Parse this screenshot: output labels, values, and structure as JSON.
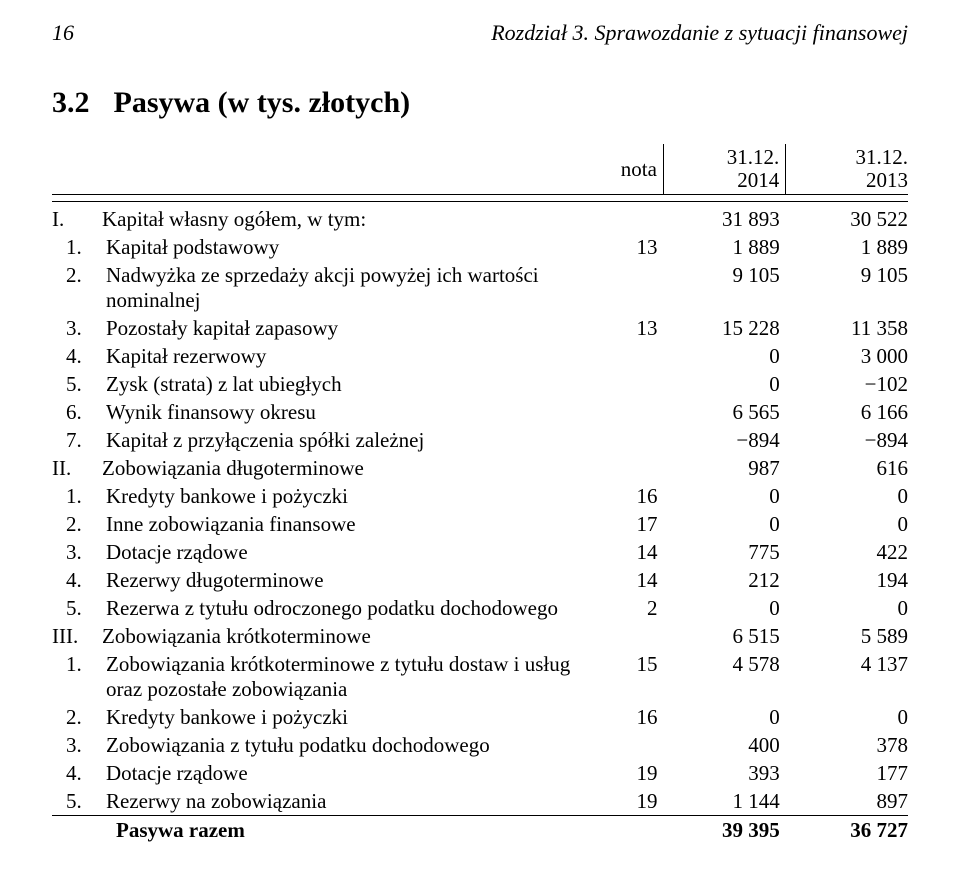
{
  "header": {
    "page_number": "16",
    "chapter": "Rozdział 3. Sprawozdanie z sytuacji finansowej"
  },
  "section": {
    "number": "3.2",
    "title": "Pasywa (w tys. złotych)"
  },
  "columns": {
    "nota": "nota",
    "y1_top": "31.12.",
    "y1_bot": "2014",
    "y2_top": "31.12.",
    "y2_bot": "2013"
  },
  "rows": [
    {
      "kind": "section",
      "num": "I.",
      "label": "Kapitał własny ogółem, w tym:",
      "nota": "",
      "y1": "31 893",
      "y2": "30 522"
    },
    {
      "kind": "item",
      "num": "1.",
      "label": "Kapitał podstawowy",
      "nota": "13",
      "y1": "1 889",
      "y2": "1 889"
    },
    {
      "kind": "item",
      "num": "2.",
      "label": "Nadwyżka ze sprzedaży akcji powyżej ich wartości nominalnej",
      "nota": "",
      "y1": "9 105",
      "y2": "9 105"
    },
    {
      "kind": "item",
      "num": "3.",
      "label": "Pozostały kapitał zapasowy",
      "nota": "13",
      "y1": "15 228",
      "y2": "11 358"
    },
    {
      "kind": "item",
      "num": "4.",
      "label": "Kapitał rezerwowy",
      "nota": "",
      "y1": "0",
      "y2": "3 000"
    },
    {
      "kind": "item",
      "num": "5.",
      "label": "Zysk (strata) z lat ubiegłych",
      "nota": "",
      "y1": "0",
      "y2": "−102"
    },
    {
      "kind": "item",
      "num": "6.",
      "label": "Wynik finansowy okresu",
      "nota": "",
      "y1": "6 565",
      "y2": "6 166"
    },
    {
      "kind": "item",
      "num": "7.",
      "label": "Kapitał z przyłączenia spółki zależnej",
      "nota": "",
      "y1": "−894",
      "y2": "−894"
    },
    {
      "kind": "section",
      "num": "II.",
      "label": "Zobowiązania długoterminowe",
      "nota": "",
      "y1": "987",
      "y2": "616"
    },
    {
      "kind": "item",
      "num": "1.",
      "label": "Kredyty bankowe i pożyczki",
      "nota": "16",
      "y1": "0",
      "y2": "0"
    },
    {
      "kind": "item",
      "num": "2.",
      "label": "Inne zobowiązania finansowe",
      "nota": "17",
      "y1": "0",
      "y2": "0"
    },
    {
      "kind": "item",
      "num": "3.",
      "label": "Dotacje rządowe",
      "nota": "14",
      "y1": "775",
      "y2": "422"
    },
    {
      "kind": "item",
      "num": "4.",
      "label": "Rezerwy długoterminowe",
      "nota": "14",
      "y1": "212",
      "y2": "194"
    },
    {
      "kind": "item",
      "num": "5.",
      "label": "Rezerwa z tytułu odroczonego podatku dochodowego",
      "nota": "2",
      "y1": "0",
      "y2": "0"
    },
    {
      "kind": "section",
      "num": "III.",
      "label": "Zobowiązania krótkoterminowe",
      "nota": "",
      "y1": "6 515",
      "y2": "5 589"
    },
    {
      "kind": "item",
      "num": "1.",
      "label": "Zobowiązania krótkoterminowe z tytułu dostaw i usług oraz pozostałe zobowiązania",
      "nota": "15",
      "y1": "4 578",
      "y2": "4 137"
    },
    {
      "kind": "item",
      "num": "2.",
      "label": "Kredyty bankowe i pożyczki",
      "nota": "16",
      "y1": "0",
      "y2": "0"
    },
    {
      "kind": "item",
      "num": "3.",
      "label": "Zobowiązania z tytułu podatku dochodowego",
      "nota": "",
      "y1": "400",
      "y2": "378"
    },
    {
      "kind": "item",
      "num": "4.",
      "label": "Dotacje rządowe",
      "nota": "19",
      "y1": "393",
      "y2": "177"
    },
    {
      "kind": "item",
      "num": "5.",
      "label": "Rezerwy na zobowiązania",
      "nota": "19",
      "y1": "1 144",
      "y2": "897"
    }
  ],
  "total": {
    "label": "Pasywa razem",
    "y1": "39 395",
    "y2": "36 727"
  }
}
